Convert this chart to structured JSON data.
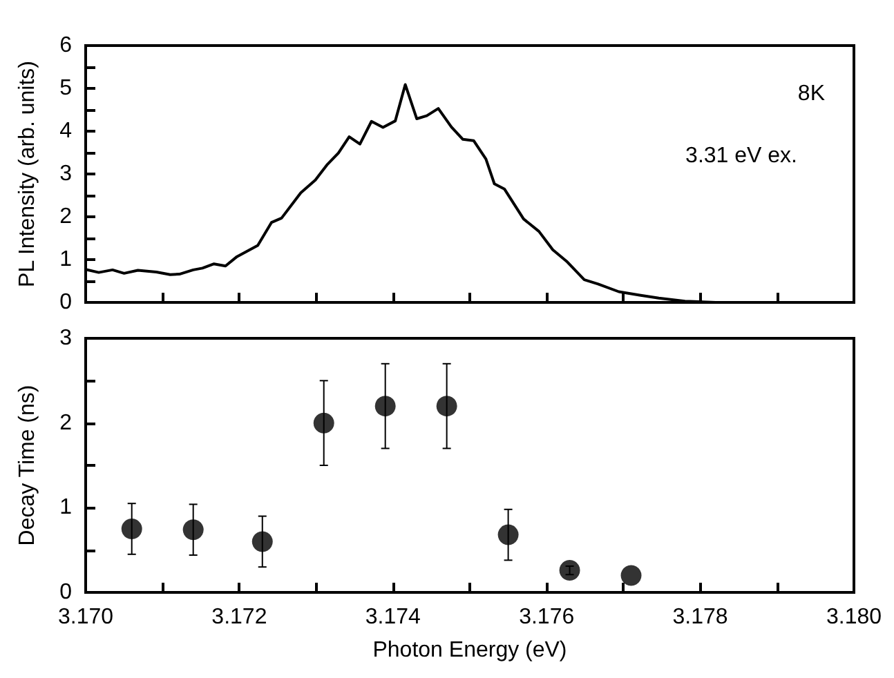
{
  "chart_data": [
    {
      "type": "line",
      "ylabel": "PL Intensity (arb. units)",
      "annotations": [
        "8K",
        "3.31 eV ex."
      ],
      "tick_labels": "y",
      "marker": "none",
      "line_style": "solid",
      "xlim": [
        3.17,
        3.18
      ],
      "xticks": [
        {
          "value": 3.17,
          "label": null
        },
        {
          "value": 3.171,
          "label": null
        },
        {
          "value": 3.172,
          "label": null
        },
        {
          "value": 3.173,
          "label": null
        },
        {
          "value": 3.174,
          "label": null
        },
        {
          "value": 3.175,
          "label": null
        },
        {
          "value": 3.176,
          "label": null
        },
        {
          "value": 3.177,
          "label": null
        },
        {
          "value": 3.178,
          "label": null
        },
        {
          "value": 3.179,
          "label": null
        },
        {
          "value": 3.18,
          "label": null
        }
      ],
      "ylim": [
        0,
        6
      ],
      "yticks": [
        0,
        {
          "value": 0.5,
          "label": null
        },
        1,
        {
          "value": 1.5,
          "label": null
        },
        2,
        {
          "value": 2.5,
          "label": null
        },
        3,
        {
          "value": 3.5,
          "label": null
        },
        4,
        {
          "value": 4.5,
          "label": null
        },
        5,
        {
          "value": 5.5,
          "label": null
        },
        6
      ],
      "series": [
        {
          "color": "#000000",
          "x": [
            3.17,
            3.17017,
            3.17035,
            3.1705,
            3.17068,
            3.17092,
            3.1711,
            3.17122,
            3.1714,
            3.17152,
            3.17167,
            3.17182,
            3.17197,
            3.17224,
            3.17242,
            3.17255,
            3.1728,
            3.17299,
            3.17314,
            3.17329,
            3.17343,
            3.17357,
            3.17372,
            3.17387,
            3.17403,
            3.17416,
            3.17431,
            3.17444,
            3.17459,
            3.17476,
            3.17491,
            3.17505,
            3.17521,
            3.17532,
            3.17545,
            3.1757,
            3.1759,
            3.17608,
            3.17626,
            3.17649,
            3.17667,
            3.17694,
            3.17721,
            3.17746,
            3.1778,
            3.1782
          ],
          "values": [
            0.77,
            0.7,
            0.76,
            0.68,
            0.75,
            0.71,
            0.65,
            0.66,
            0.76,
            0.8,
            0.9,
            0.85,
            1.07,
            1.33,
            1.87,
            1.97,
            2.56,
            2.86,
            3.21,
            3.49,
            3.87,
            3.7,
            4.23,
            4.09,
            4.24,
            5.09,
            4.29,
            4.36,
            4.53,
            4.1,
            3.81,
            3.78,
            3.35,
            2.77,
            2.65,
            1.95,
            1.66,
            1.23,
            0.96,
            0.53,
            0.43,
            0.25,
            0.17,
            0.1,
            0.03,
            0
          ]
        }
      ]
    },
    {
      "type": "scatter",
      "xlabel": "Photon Energy (eV)",
      "ylabel": "Decay Time (ns)",
      "marker": "circle",
      "xlim": [
        3.17,
        3.18
      ],
      "xticks": [
        {
          "value": 3.17,
          "label": "3.170"
        },
        {
          "value": 3.171,
          "label": null
        },
        {
          "value": 3.172,
          "label": "3.172"
        },
        {
          "value": 3.173,
          "label": null
        },
        {
          "value": 3.174,
          "label": "3.174"
        },
        {
          "value": 3.175,
          "label": null
        },
        {
          "value": 3.176,
          "label": "3.176"
        },
        {
          "value": 3.177,
          "label": null
        },
        {
          "value": 3.178,
          "label": "3.178"
        },
        {
          "value": 3.179,
          "label": null
        },
        {
          "value": 3.18,
          "label": "3.180"
        }
      ],
      "ylim": [
        0,
        3
      ],
      "yticks": [
        0,
        {
          "value": 0.5,
          "label": null
        },
        1,
        {
          "value": 1.5,
          "label": null
        },
        2,
        {
          "value": 2.5,
          "label": null
        },
        3
      ],
      "series": [
        {
          "color": "#000000",
          "x": [
            3.1706,
            3.1714,
            3.1723,
            3.1731,
            3.1739,
            3.1747,
            3.1755,
            3.1763,
            3.1771
          ],
          "values": [
            0.75,
            0.74,
            0.6,
            2.0,
            2.2,
            2.2,
            0.68,
            0.26,
            0.2
          ],
          "errors": [
            0.3,
            0.3,
            0.3,
            0.5,
            0.5,
            0.5,
            0.3,
            0.05,
            null
          ]
        }
      ]
    }
  ]
}
